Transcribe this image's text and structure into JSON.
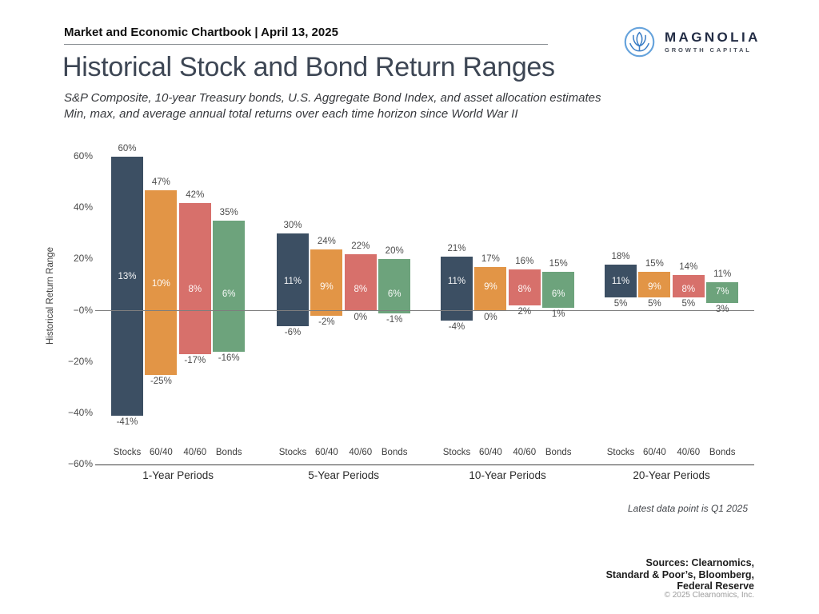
{
  "header": {
    "chartbook": "Market and Economic Chartbook | April 13, 2025"
  },
  "logo": {
    "name": "MAGNOLIA",
    "tagline": "GROWTH CAPITAL"
  },
  "title": "Historical Stock and Bond Return Ranges",
  "subtitle_line1": "S&P Composite, 10-year Treasury bonds, U.S. Aggregate Bond Index, and asset allocation estimates",
  "subtitle_line2": "Min, max, and average annual total returns over each time horizon since World War II",
  "footnote": "Latest data point is Q1 2025",
  "sources": [
    "Sources: Clearnomics,",
    "Standard & Poor’s, Bloomberg,",
    "Federal Reserve"
  ],
  "copyright": "© 2025 Clearnomics, Inc.",
  "chart_data": {
    "type": "bar",
    "subtype": "floating-range-bar",
    "title": "Historical Stock and Bond Return Ranges",
    "ylabel": "Historical Return Range",
    "ylim": [
      -60,
      60
    ],
    "yticks": [
      "60%",
      "40%",
      "20%",
      "−0%",
      "−20%",
      "−40%",
      "−60%"
    ],
    "ytick_values": [
      60,
      40,
      20,
      0,
      -20,
      -40,
      -60
    ],
    "grid": "off",
    "assets": [
      "Stocks",
      "60/40",
      "40/60",
      "Bonds"
    ],
    "colors": [
      "#3c4f63",
      "#e29546",
      "#d7706b",
      "#6da37c"
    ],
    "groups": [
      {
        "label": "1-Year Periods",
        "bars": [
          {
            "asset": "Stocks",
            "max": 60,
            "avg": 13,
            "min": -41
          },
          {
            "asset": "60/40",
            "max": 47,
            "avg": 10,
            "min": -25
          },
          {
            "asset": "40/60",
            "max": 42,
            "avg": 8,
            "min": -17
          },
          {
            "asset": "Bonds",
            "max": 35,
            "avg": 6,
            "min": -16
          }
        ]
      },
      {
        "label": "5-Year Periods",
        "bars": [
          {
            "asset": "Stocks",
            "max": 30,
            "avg": 11,
            "min": -6
          },
          {
            "asset": "60/40",
            "max": 24,
            "avg": 9,
            "min": -2
          },
          {
            "asset": "40/60",
            "max": 22,
            "avg": 8,
            "min": 0
          },
          {
            "asset": "Bonds",
            "max": 20,
            "avg": 6,
            "min": -1
          }
        ]
      },
      {
        "label": "10-Year Periods",
        "bars": [
          {
            "asset": "Stocks",
            "max": 21,
            "avg": 11,
            "min": -4
          },
          {
            "asset": "60/40",
            "max": 17,
            "avg": 9,
            "min": 0
          },
          {
            "asset": "40/60",
            "max": 16,
            "avg": 8,
            "min": 2
          },
          {
            "asset": "Bonds",
            "max": 15,
            "avg": 6,
            "min": 1
          }
        ]
      },
      {
        "label": "20-Year Periods",
        "bars": [
          {
            "asset": "Stocks",
            "max": 18,
            "avg": 11,
            "min": 5
          },
          {
            "asset": "60/40",
            "max": 15,
            "avg": 9,
            "min": 5
          },
          {
            "asset": "40/60",
            "max": 14,
            "avg": 8,
            "min": 5
          },
          {
            "asset": "Bonds",
            "max": 11,
            "avg": 7,
            "min": 3
          }
        ]
      }
    ]
  }
}
